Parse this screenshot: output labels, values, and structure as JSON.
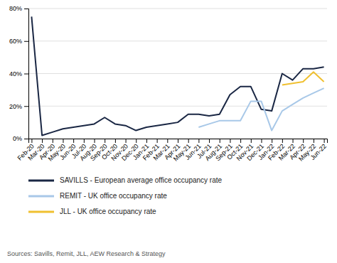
{
  "chart_data": {
    "type": "line",
    "categories": [
      "Feb-20",
      "Mar-20",
      "Apr-20",
      "May-20",
      "Jun-20",
      "Jul-20",
      "Aug-20",
      "Sep-20",
      "Oct-20",
      "Nov-20",
      "Dec-20",
      "Jan-21",
      "Feb-21",
      "Mar-21",
      "Apr-21",
      "May-21",
      "Jun-21",
      "Jul-21",
      "Aug-21",
      "Sep-21",
      "Oct-21",
      "Nov-21",
      "Dec-21",
      "Jan-22",
      "Feb-22",
      "Mar-22",
      "Apr-22",
      "May-22",
      "Jun-22"
    ],
    "series": [
      {
        "name": "SAVILLS - European average office occupancy rate",
        "color": "#1a2744",
        "values": [
          75,
          2,
          4,
          6,
          7,
          8,
          9,
          13,
          9,
          8,
          5,
          7,
          8,
          9,
          10,
          15,
          15,
          14,
          15,
          27,
          32,
          32,
          18,
          17,
          40,
          36,
          43,
          43,
          44
        ]
      },
      {
        "name": "REMIT - UK office occupancy rate",
        "color": "#a8c8e8",
        "values": [
          null,
          null,
          null,
          null,
          null,
          null,
          null,
          null,
          null,
          null,
          null,
          null,
          null,
          null,
          null,
          null,
          7,
          9,
          11,
          11,
          11,
          23,
          23,
          5,
          17,
          21,
          25,
          28,
          31
        ]
      },
      {
        "name": "JLL - UK office occupancy rate",
        "color": "#f0c030",
        "values": [
          null,
          null,
          null,
          null,
          null,
          null,
          null,
          null,
          null,
          null,
          null,
          null,
          null,
          null,
          null,
          null,
          null,
          null,
          null,
          null,
          null,
          null,
          null,
          null,
          33,
          34,
          35,
          41,
          35
        ]
      }
    ],
    "ylim": [
      0,
      80
    ],
    "yticks": [
      {
        "value": 0,
        "label": "0%"
      },
      {
        "value": 20,
        "label": "20%"
      },
      {
        "value": 40,
        "label": "40%"
      },
      {
        "value": 60,
        "label": "60%"
      },
      {
        "value": 80,
        "label": "80%"
      }
    ],
    "grid": true,
    "legend": "bottom",
    "source": "Sources: Savills, Remit, JLL, AEW Research & Strategy"
  }
}
